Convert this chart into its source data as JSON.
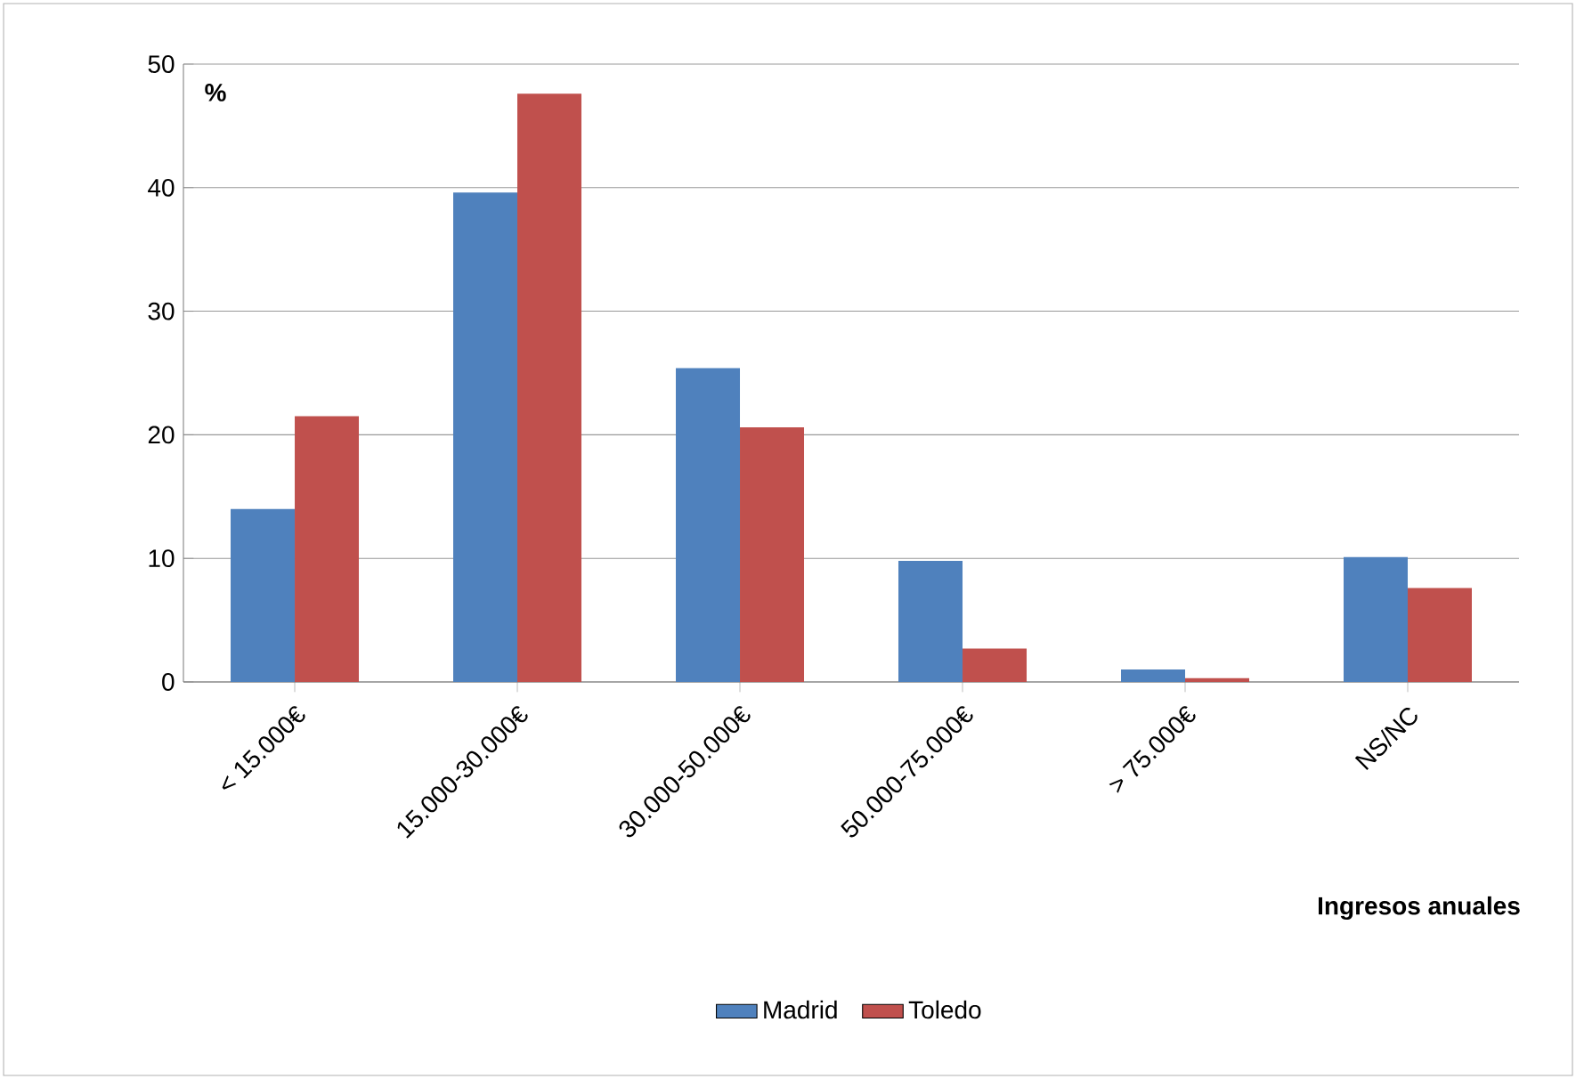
{
  "chart_data": {
    "type": "bar",
    "xlabel": "Ingresos anuales",
    "ylabel": "%",
    "categories": [
      "< 15.000€",
      "15.000-30.000€",
      "30.000-50.000€",
      "50.000-75.000€",
      "> 75.000€",
      "NS/NC"
    ],
    "series": [
      {
        "name": "Madrid",
        "color": "#4f81bd",
        "values": [
          14.0,
          39.6,
          25.4,
          9.8,
          1.0,
          10.1
        ]
      },
      {
        "name": "Toledo",
        "color": "#c0504d",
        "values": [
          21.5,
          47.6,
          20.6,
          2.7,
          0.3,
          7.6
        ]
      }
    ],
    "ylim": [
      0,
      50
    ],
    "yticks": [
      0,
      10,
      20,
      30,
      40,
      50
    ],
    "grid": "y",
    "legend": "bottom"
  }
}
